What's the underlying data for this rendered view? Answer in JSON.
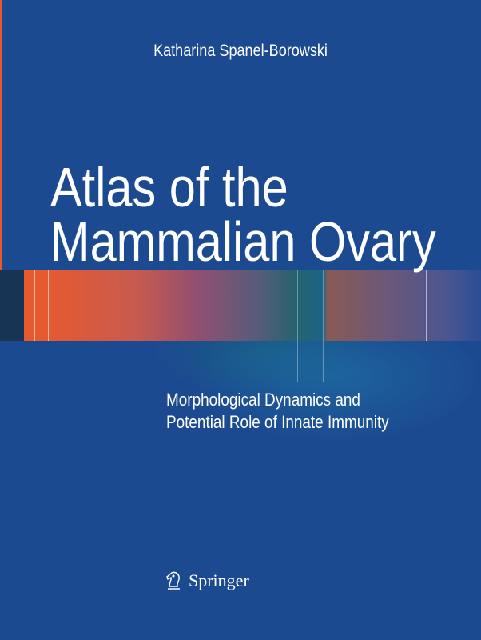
{
  "author": "Katharina Spanel-Borowski",
  "title": {
    "line1": "Atlas of the",
    "line2": "Mammalian Ovary"
  },
  "subtitle": {
    "line1": "Morphological Dynamics and",
    "line2": "Potential Role of Innate Immunity"
  },
  "publisher": {
    "name": "Springer",
    "logo_icon": "knight-horse-icon"
  },
  "colors": {
    "background": "#1c4a90",
    "accent_orange": "#e8582a",
    "text": "#ffffff"
  }
}
